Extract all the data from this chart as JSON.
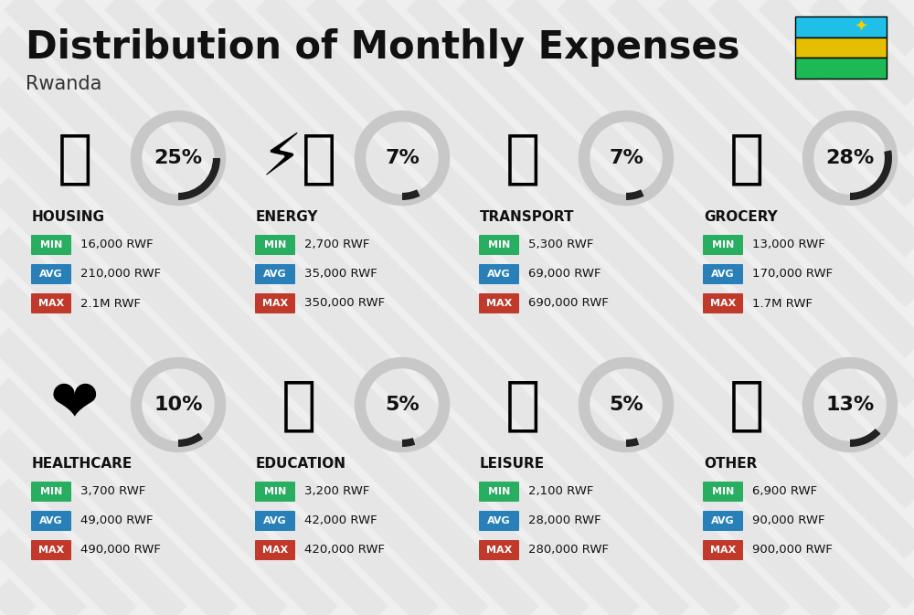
{
  "title": "Distribution of Monthly Expenses",
  "subtitle": "Rwanda",
  "background_color": "#efefef",
  "categories": [
    {
      "name": "HOUSING",
      "percent": 25,
      "min": "16,000 RWF",
      "avg": "210,000 RWF",
      "max": "2.1M RWF",
      "row": 0,
      "col": 0,
      "icon_char": "🏢",
      "icon_color": "#2980b9"
    },
    {
      "name": "ENERGY",
      "percent": 7,
      "min": "2,700 RWF",
      "avg": "35,000 RWF",
      "max": "350,000 RWF",
      "row": 0,
      "col": 1,
      "icon_char": "⚡🏠",
      "icon_color": "#f39c12"
    },
    {
      "name": "TRANSPORT",
      "percent": 7,
      "min": "5,300 RWF",
      "avg": "69,000 RWF",
      "max": "690,000 RWF",
      "row": 0,
      "col": 2,
      "icon_char": "🚌",
      "icon_color": "#1abc9c"
    },
    {
      "name": "GROCERY",
      "percent": 28,
      "min": "13,000 RWF",
      "avg": "170,000 RWF",
      "max": "1.7M RWF",
      "row": 0,
      "col": 3,
      "icon_char": "🛒",
      "icon_color": "#e67e22"
    },
    {
      "name": "HEALTHCARE",
      "percent": 10,
      "min": "3,700 RWF",
      "avg": "49,000 RWF",
      "max": "490,000 RWF",
      "row": 1,
      "col": 0,
      "icon_char": "❤️",
      "icon_color": "#e74c3c"
    },
    {
      "name": "EDUCATION",
      "percent": 5,
      "min": "3,200 RWF",
      "avg": "42,000 RWF",
      "max": "420,000 RWF",
      "row": 1,
      "col": 1,
      "icon_char": "🎓",
      "icon_color": "#8e44ad"
    },
    {
      "name": "LEISURE",
      "percent": 5,
      "min": "2,100 RWF",
      "avg": "28,000 RWF",
      "max": "280,000 RWF",
      "row": 1,
      "col": 2,
      "icon_char": "🛍️",
      "icon_color": "#e74c3c"
    },
    {
      "name": "OTHER",
      "percent": 13,
      "min": "6,900 RWF",
      "avg": "90,000 RWF",
      "max": "900,000 RWF",
      "row": 1,
      "col": 3,
      "icon_char": "💛",
      "icon_color": "#795548"
    }
  ],
  "min_color": "#27ae60",
  "avg_color": "#2980b9",
  "max_color": "#c0392b",
  "arc_filled_color": "#222222",
  "arc_empty_color": "#c8c8c8",
  "title_font_size": 30,
  "subtitle_font_size": 15,
  "flag_blue": "#20bfe8",
  "flag_yellow": "#e5be01",
  "flag_green": "#1db954"
}
